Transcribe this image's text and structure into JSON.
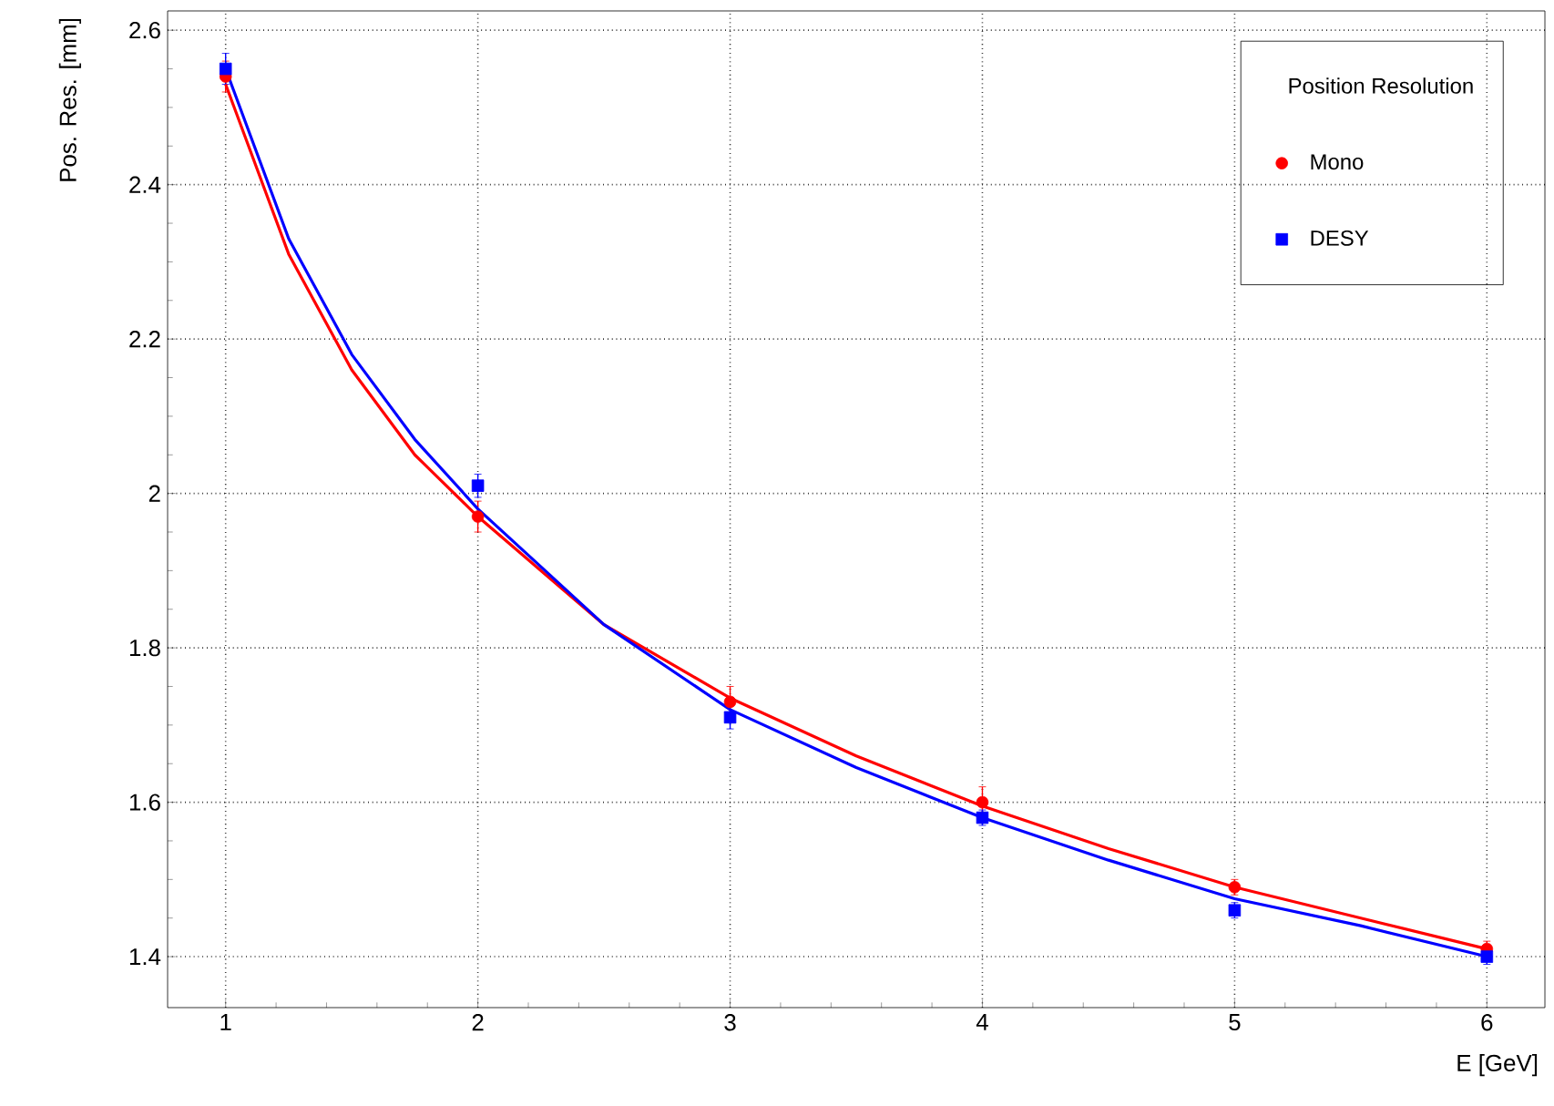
{
  "chart_data": {
    "type": "scatter",
    "xlabel": "E [GeV]",
    "ylabel": "Pos. Res. [mm]",
    "legend_title": "Position Resolution",
    "x": [
      1,
      2,
      3,
      4,
      5,
      6
    ],
    "series": [
      {
        "name": "Mono",
        "color": "#ff0000",
        "marker": "circle",
        "values": [
          2.54,
          1.97,
          1.73,
          1.6,
          1.49,
          1.41
        ],
        "errors": [
          0.02,
          0.02,
          0.02,
          0.02,
          0.01,
          0.01
        ]
      },
      {
        "name": "DESY",
        "color": "#0000ff",
        "marker": "square",
        "values": [
          2.55,
          2.01,
          1.71,
          1.58,
          1.46,
          1.4
        ],
        "errors": [
          0.02,
          0.015,
          0.015,
          0.01,
          0.01,
          0.01
        ]
      },
      {
        "type": "line",
        "color": "#ff0000",
        "marker": "none",
        "x": [
          1.0,
          1.25,
          1.5,
          1.75,
          2.0,
          2.5,
          3.0,
          3.5,
          4.0,
          4.5,
          5.0,
          5.5,
          6.0
        ],
        "values": [
          2.53,
          2.31,
          2.16,
          2.05,
          1.97,
          1.83,
          1.735,
          1.66,
          1.595,
          1.54,
          1.49,
          1.45,
          1.41
        ]
      },
      {
        "type": "line",
        "color": "#0000ff",
        "marker": "none",
        "x": [
          1.0,
          1.25,
          1.5,
          1.75,
          2.0,
          2.5,
          3.0,
          3.5,
          4.0,
          4.5,
          5.0,
          5.5,
          6.0
        ],
        "values": [
          2.55,
          2.33,
          2.18,
          2.07,
          1.98,
          1.83,
          1.72,
          1.645,
          1.58,
          1.525,
          1.475,
          1.44,
          1.4
        ]
      }
    ],
    "xlim": [
      0.77,
      6.23
    ],
    "ylim": [
      1.334,
      2.625
    ],
    "xticks": [
      1,
      2,
      3,
      4,
      5,
      6
    ],
    "yticks": [
      1.4,
      1.6,
      1.8,
      2,
      2.2,
      2.4,
      2.6
    ],
    "grid": true,
    "legend": "top right"
  }
}
